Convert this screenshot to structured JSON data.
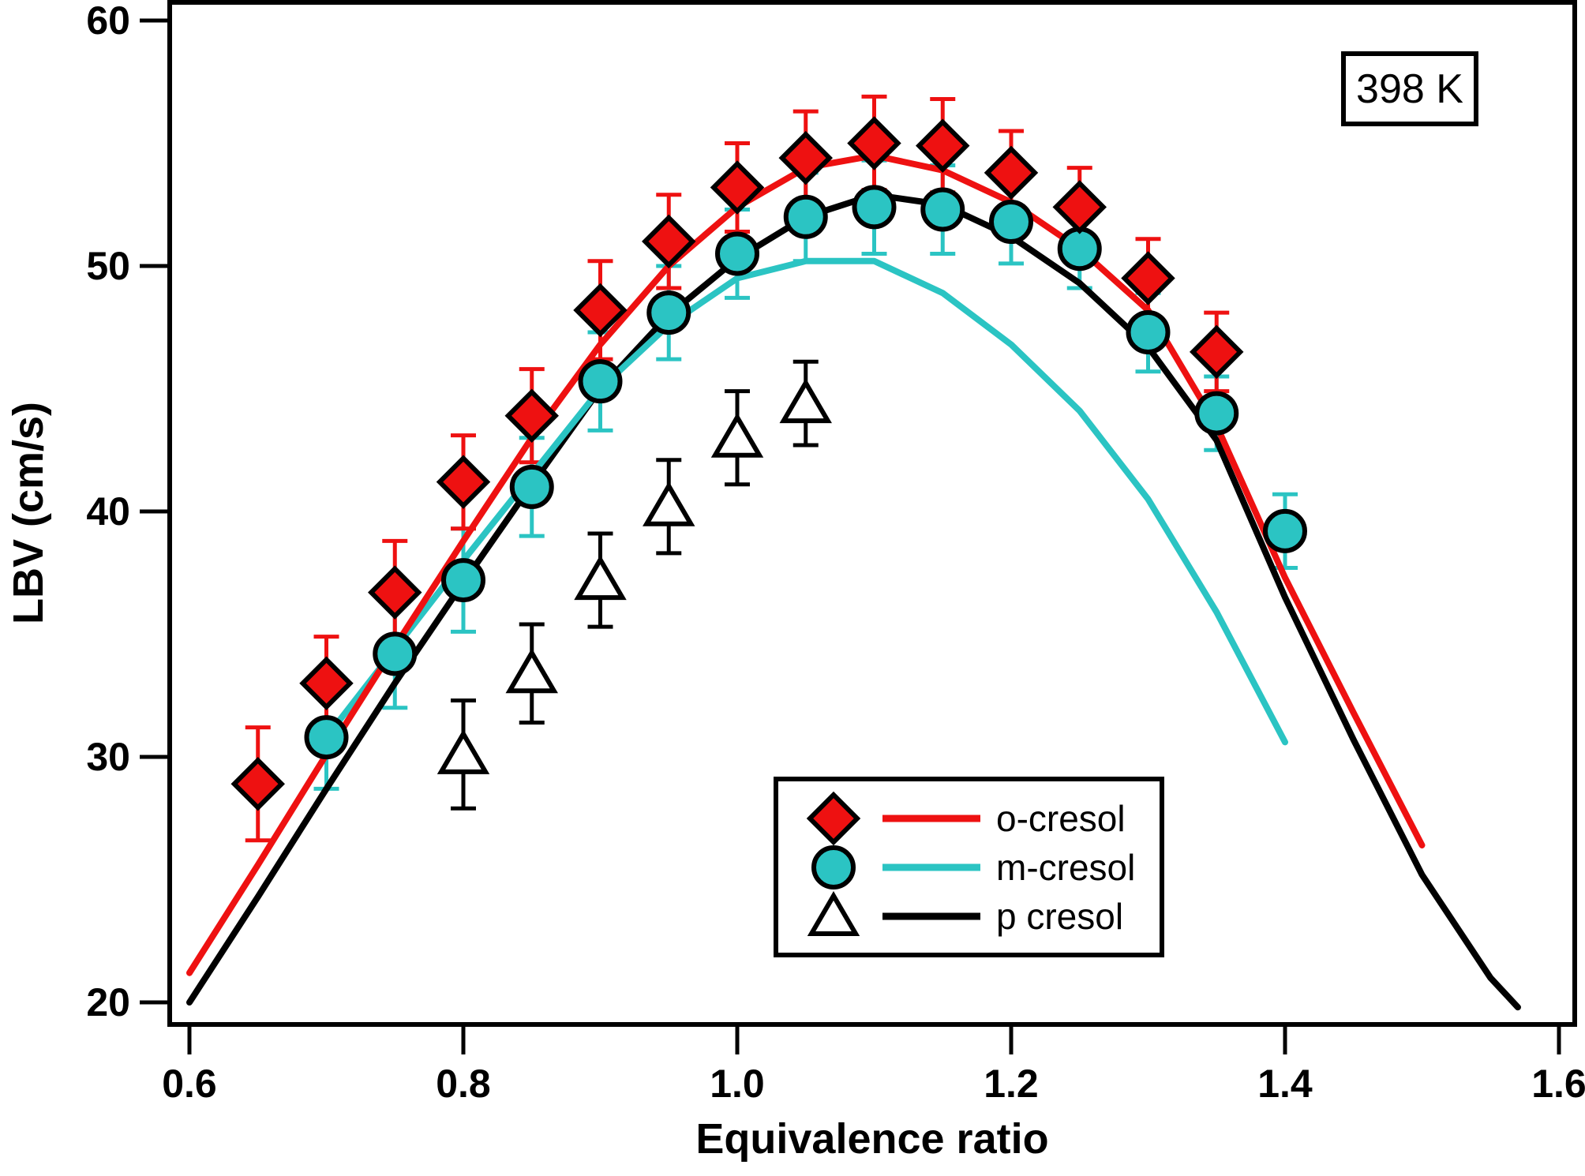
{
  "annotation": {
    "text": "398 K"
  },
  "legend": {
    "items": [
      {
        "label": "o-cresol"
      },
      {
        "label": "m-cresol"
      },
      {
        "label": "p cresol"
      }
    ]
  },
  "chart_data": {
    "type": "scatter",
    "title": "",
    "xlabel": "Equivalence ratio",
    "ylabel": "LBV (cm/s)",
    "annotation": "398 K",
    "xlim": [
      0.586,
      1.612
    ],
    "ylim": [
      19.1,
      60.7
    ],
    "x_ticks": [
      0.6,
      0.8,
      1.0,
      1.2,
      1.4,
      1.6
    ],
    "x_tick_labels": [
      "0.6",
      "0.8",
      "1.0",
      "1.2",
      "1.4",
      "1.6"
    ],
    "y_ticks": [
      20,
      30,
      40,
      50,
      60
    ],
    "y_tick_labels": [
      "20",
      "30",
      "40",
      "50",
      "60"
    ],
    "grid": false,
    "legend_position": "lower center-right",
    "series": [
      {
        "name": "p cresol",
        "marker": "triangle-open",
        "color": "#000000",
        "x": [
          0.8,
          0.85,
          0.9,
          0.95,
          1.0,
          1.05
        ],
        "y": [
          30.1,
          33.4,
          37.2,
          40.2,
          43.0,
          44.4
        ],
        "yerr": [
          2.2,
          2.0,
          1.9,
          1.9,
          1.9,
          1.7
        ],
        "model_line": {
          "x": [
            0.6,
            0.65,
            0.7,
            0.75,
            0.8,
            0.85,
            0.9,
            0.95,
            1.0,
            1.05,
            1.1,
            1.15,
            1.2,
            1.25,
            1.3,
            1.35,
            1.4,
            1.45,
            1.5,
            1.55,
            1.57
          ],
          "y": [
            20.0,
            24.3,
            28.7,
            33.0,
            37.1,
            41.1,
            45.0,
            48.0,
            50.3,
            52.0,
            52.9,
            52.5,
            51.2,
            49.3,
            46.7,
            42.9,
            36.5,
            30.7,
            25.2,
            21.0,
            19.8
          ]
        }
      },
      {
        "name": "m-cresol",
        "marker": "circle",
        "color": "#2BC4C3",
        "x": [
          0.7,
          0.75,
          0.8,
          0.85,
          0.9,
          0.95,
          1.0,
          1.05,
          1.1,
          1.15,
          1.2,
          1.25,
          1.3,
          1.35,
          1.4
        ],
        "y": [
          30.8,
          34.2,
          37.2,
          41.0,
          45.3,
          48.1,
          50.5,
          52.0,
          52.4,
          52.3,
          51.8,
          50.7,
          47.3,
          44.0,
          39.2
        ],
        "yerr": [
          2.1,
          2.2,
          2.1,
          2.0,
          2.0,
          1.9,
          1.8,
          1.8,
          1.9,
          1.8,
          1.7,
          1.6,
          1.6,
          1.5,
          1.5
        ],
        "model_line": {
          "x": [
            0.7,
            0.75,
            0.8,
            0.85,
            0.9,
            0.95,
            1.0,
            1.05,
            1.1,
            1.15,
            1.2,
            1.25,
            1.3,
            1.35,
            1.4
          ],
          "y": [
            30.8,
            34.4,
            38.0,
            41.5,
            45.0,
            47.6,
            49.5,
            50.2,
            50.2,
            48.9,
            46.8,
            44.1,
            40.5,
            35.9,
            30.6
          ]
        }
      },
      {
        "name": "o-cresol",
        "marker": "diamond",
        "color": "#EE1111",
        "x": [
          0.65,
          0.7,
          0.75,
          0.8,
          0.85,
          0.9,
          0.95,
          1.0,
          1.05,
          1.1,
          1.15,
          1.2,
          1.25,
          1.3,
          1.35
        ],
        "y": [
          28.9,
          33.0,
          36.7,
          41.2,
          43.9,
          48.2,
          51.0,
          53.2,
          54.4,
          55.0,
          54.9,
          53.8,
          52.4,
          49.5,
          46.5
        ],
        "yerr": [
          2.3,
          1.9,
          2.1,
          1.9,
          1.9,
          2.0,
          1.9,
          1.8,
          1.9,
          1.9,
          1.9,
          1.7,
          1.6,
          1.6,
          1.6
        ],
        "model_line": {
          "x": [
            0.6,
            0.65,
            0.7,
            0.75,
            0.8,
            0.85,
            0.9,
            0.95,
            1.0,
            1.05,
            1.1,
            1.15,
            1.2,
            1.25,
            1.3,
            1.35,
            1.4,
            1.45,
            1.5
          ],
          "y": [
            21.2,
            25.6,
            30.1,
            34.5,
            38.8,
            43.0,
            46.8,
            50.0,
            52.4,
            54.0,
            54.5,
            53.9,
            52.6,
            50.7,
            48.2,
            43.5,
            37.3,
            31.8,
            26.4
          ]
        }
      }
    ]
  }
}
